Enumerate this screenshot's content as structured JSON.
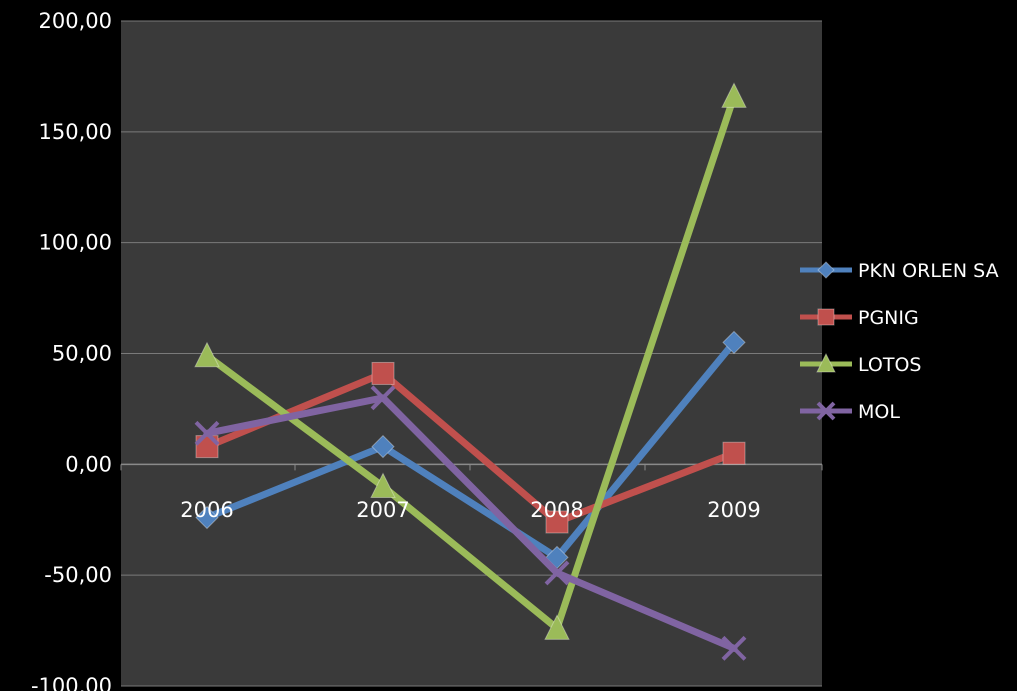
{
  "chart_data": {
    "type": "line",
    "categories": [
      "2006",
      "2007",
      "2008",
      "2009"
    ],
    "ylim": [
      -100,
      200
    ],
    "y_ticks": [
      "-100,00",
      "-50,00",
      "0,00",
      "50,00",
      "100,00",
      "150,00",
      "200,00"
    ],
    "y_tick_values": [
      -100,
      -50,
      0,
      50,
      100,
      150,
      200
    ],
    "grid": "horizontal",
    "legend_position": "right",
    "plot_background": "#3a3a3a",
    "page_background": "#000000",
    "series": [
      {
        "name": "PKN ORLEN SA",
        "values": [
          -24,
          8,
          -42,
          55
        ],
        "color": "#4f81bd",
        "marker": "diamond"
      },
      {
        "name": "PGNIG",
        "values": [
          8,
          41,
          -26,
          5
        ],
        "color": "#c0504d",
        "marker": "square"
      },
      {
        "name": "LOTOS",
        "values": [
          49,
          -10,
          -74,
          166
        ],
        "color": "#9bbb59",
        "marker": "triangle"
      },
      {
        "name": "MOL",
        "values": [
          14,
          30,
          -49,
          -83
        ],
        "color": "#8064a2",
        "marker": "x"
      }
    ]
  }
}
